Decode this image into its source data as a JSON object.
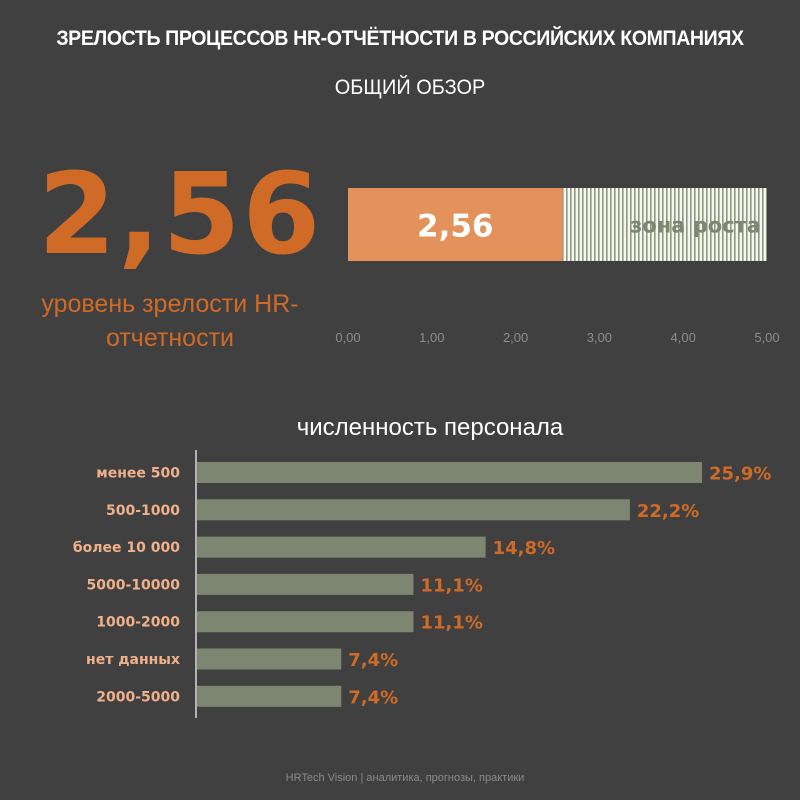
{
  "header": {
    "title": "ЗРЕЛОСТЬ ПРОЦЕССОВ HR-ОТЧЁТНОСТИ В РОССИЙСКИХ КОМПАНИЯХ",
    "subtitle": "ОБЩИЙ ОБЗОР"
  },
  "score": {
    "value_text": "2,56",
    "label": "уровень зрелости HR-отчетности"
  },
  "colors": {
    "background": "#404040",
    "accent": "#d06a27",
    "gauge_fill": "#e2925a",
    "bar": "#7d8671",
    "category_label": "#f0b08a",
    "growth_text": "#7d8671"
  },
  "chart_data": [
    {
      "type": "bar",
      "orientation": "horizontal",
      "stacked": true,
      "categories": [
        ""
      ],
      "series": [
        {
          "values": [
            2.56
          ],
          "label": "2,56"
        },
        {
          "values": [
            2.44
          ],
          "label": "зона роста"
        }
      ],
      "xlim": [
        0,
        5
      ],
      "xticks": [
        "0,00",
        "1,00",
        "2,00",
        "3,00",
        "4,00",
        "5,00"
      ],
      "grid": false
    },
    {
      "type": "bar",
      "orientation": "horizontal",
      "title": "численность персонала",
      "categories": [
        "менее 500",
        "500-1000",
        "более 10 000",
        "5000-10000",
        "1000-2000",
        "нет данных",
        "2000-5000"
      ],
      "values": [
        25.9,
        22.2,
        14.8,
        11.1,
        11.1,
        7.4,
        7.4
      ],
      "value_labels": [
        "25,9%",
        "22,2%",
        "14,8%",
        "11,1%",
        "11,1%",
        "7,4%",
        "7,4%"
      ],
      "xlim": [
        0,
        25.9
      ],
      "grid": false
    }
  ],
  "footer": {
    "text": "HRTech Vision | аналитика, прогнозы, практики"
  }
}
